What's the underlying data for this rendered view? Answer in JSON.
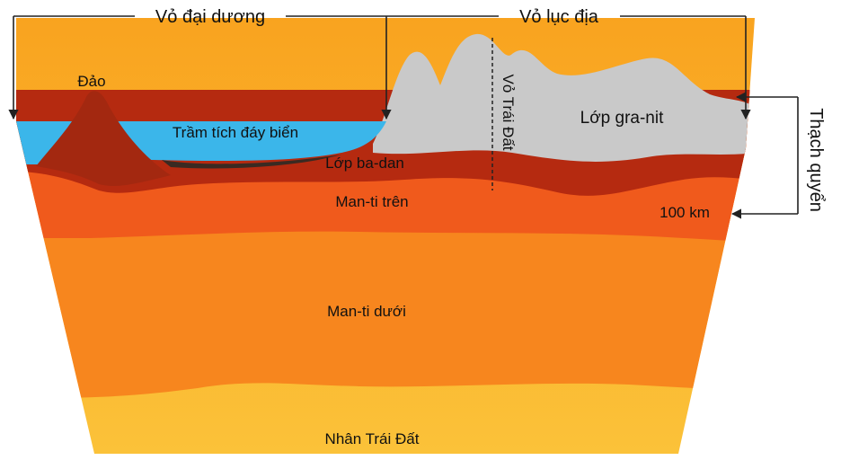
{
  "labels": {
    "oceanic_crust": "Vỏ đại dương",
    "continental_crust": "Vỏ lục địa",
    "island": "Đảo",
    "sediment": "Trầm tích đáy biển",
    "basalt": "Lớp ba-dan",
    "granite": "Lớp gra-nit",
    "earth_crust": "Vỏ Trái Đất",
    "lithosphere": "Thạch quyển",
    "upper_mantle": "Man-ti trên",
    "depth": "100 km",
    "lower_mantle": "Man-ti dưới",
    "core": "Nhân Trái Đất"
  }
}
